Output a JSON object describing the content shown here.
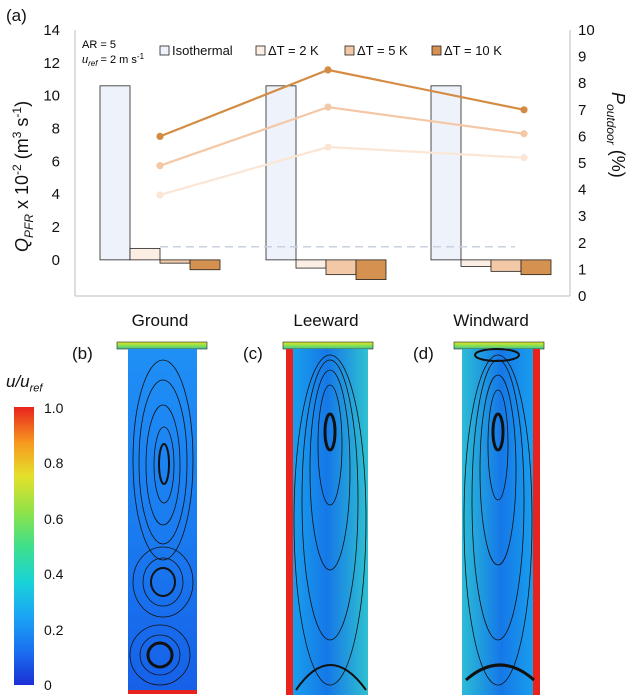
{
  "panel_labels": [
    "(a)",
    "(b)",
    "(c)",
    "(d)"
  ],
  "chart_data": {
    "type": "bar",
    "categories": [
      "Ground",
      "Leeward",
      "Windward"
    ],
    "y_left": {
      "label_main": "Q",
      "label_sub": "PFR",
      "label_rest": " x 10",
      "label_sup": "-2",
      "label_unit": " (m",
      "label_unit_sup": "3",
      "label_unit2": " s",
      "label_unit2_sup": "-1",
      "label_close": ")",
      "ticks": [
        0,
        2,
        4,
        6,
        8,
        10,
        12,
        14
      ],
      "range": [
        -2.2,
        14
      ]
    },
    "y_right": {
      "label_main": "P",
      "label_sub": "outdoor",
      "label_close": " (%)",
      "ticks": [
        0,
        1,
        2,
        3,
        4,
        5,
        6,
        7,
        8,
        9,
        10
      ],
      "range": [
        0,
        10
      ]
    },
    "annotations": {
      "ar": "AR = 5",
      "uref_sym": "u",
      "uref_sub": "ref",
      "uref_rest": " = 2 m s",
      "uref_sup": "-1"
    },
    "bar_series": [
      {
        "name": "Isothermal",
        "color": "#eef3fb",
        "values": [
          10.6,
          10.6,
          10.6
        ]
      },
      {
        "name": "ΔT  = 2 K",
        "color": "#fdeee4",
        "values": [
          0.7,
          -0.5,
          -0.4
        ]
      },
      {
        "name": "ΔT  = 5 K",
        "color": "#f2c8a6",
        "values": [
          -0.2,
          -0.9,
          -0.7
        ]
      },
      {
        "name": "ΔT  = 10 K",
        "color": "#d4914f",
        "values": [
          -0.6,
          -1.2,
          -0.9
        ]
      }
    ],
    "line_series": [
      {
        "color": "#fbe6d6",
        "values": [
          3.8,
          5.6,
          5.2
        ]
      },
      {
        "color": "#f4c8a6",
        "values": [
          4.9,
          7.1,
          6.1
        ]
      },
      {
        "color": "#d48c44",
        "values": [
          6.0,
          8.5,
          7.0
        ]
      }
    ],
    "dashed_reference_left": 0.8
  },
  "colorbar": {
    "title_sym": "u/u",
    "title_sub": "ref",
    "ticks": [
      "1.0",
      "0.8",
      "0.6",
      "0.4",
      "0.2",
      "0"
    ]
  }
}
